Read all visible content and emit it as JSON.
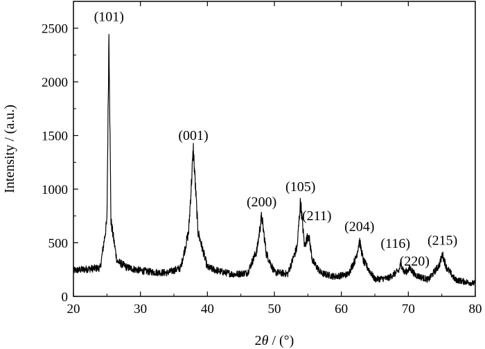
{
  "chart_data": {
    "type": "line",
    "title": "",
    "xlabel_prefix": "2",
    "xlabel_theta": "θ",
    "xlabel_suffix": " / (°)",
    "ylabel": "Intensity / (a.u.)",
    "xlim": [
      20,
      80
    ],
    "ylim": [
      0,
      2750
    ],
    "xticks": [
      20,
      30,
      40,
      50,
      60,
      70,
      80
    ],
    "yticks": [
      0,
      500,
      1000,
      1500,
      2000,
      2500
    ],
    "grid": false,
    "legend": "none",
    "line_color": "#000000",
    "series": [
      {
        "x": [
          20,
          22,
          24,
          25.0,
          25.3,
          25.6,
          26.5,
          28,
          30,
          32,
          34,
          36,
          37.2,
          37.9,
          38.6,
          40,
          42,
          44,
          46,
          47.4,
          48.1,
          48.8,
          50,
          52,
          53.4,
          53.9,
          54.5,
          55.1,
          55.7,
          57,
          59,
          61,
          62.2,
          62.7,
          63.3,
          65,
          67,
          68.6,
          68.9,
          69.4,
          70.3,
          71,
          73,
          74.6,
          75.1,
          75.7,
          77,
          79,
          80
        ],
        "y": [
          240,
          255,
          265,
          700,
          2475,
          700,
          330,
          270,
          240,
          225,
          220,
          265,
          600,
          1370,
          600,
          270,
          230,
          205,
          220,
          430,
          750,
          400,
          225,
          210,
          460,
          890,
          470,
          580,
          330,
          215,
          185,
          205,
          360,
          520,
          330,
          160,
          170,
          240,
          310,
          220,
          260,
          200,
          155,
          290,
          390,
          270,
          155,
          130,
          120
        ]
      }
    ],
    "annotations": [
      {
        "text": "(101)",
        "x": 25.3,
        "y": 2475
      },
      {
        "text": "(001)",
        "x": 37.9,
        "y": 1370
      },
      {
        "text": "(200)",
        "x": 48.1,
        "y": 750
      },
      {
        "text": "(105)",
        "x": 53.9,
        "y": 890
      },
      {
        "text": "(211)",
        "x": 55.1,
        "y": 580
      },
      {
        "text": "(204)",
        "x": 62.7,
        "y": 520
      },
      {
        "text": "(116)",
        "x": 68.9,
        "y": 310
      },
      {
        "text": "(220)",
        "x": 70.3,
        "y": 260
      },
      {
        "text": "(215)",
        "x": 75.1,
        "y": 390
      }
    ]
  }
}
